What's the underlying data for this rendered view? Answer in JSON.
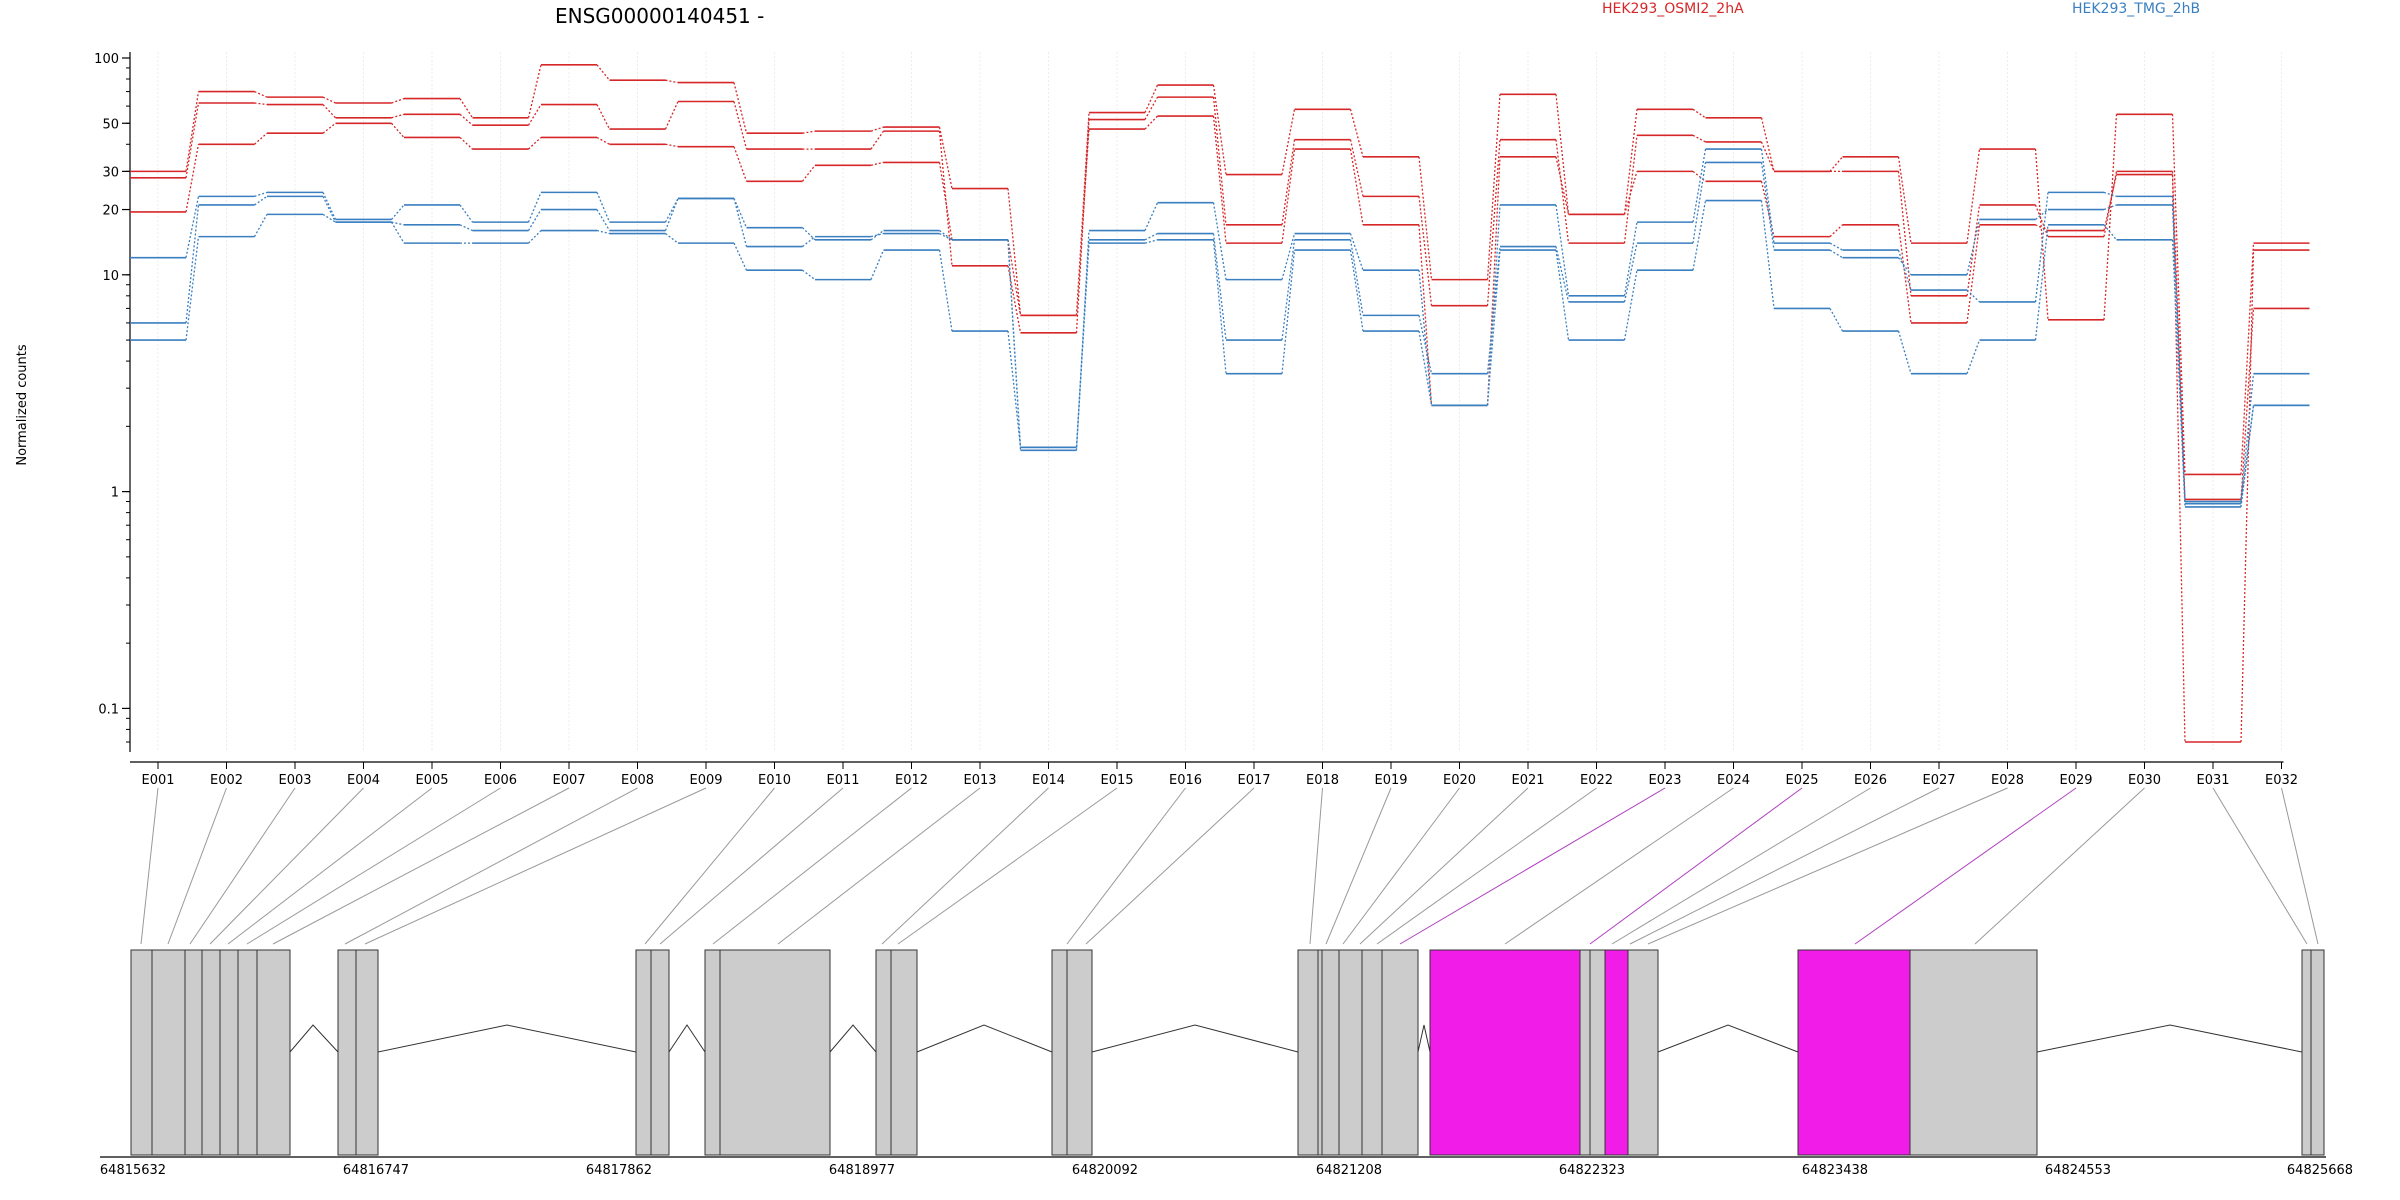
{
  "chart_data": {
    "type": "line",
    "title": "ENSG00000140451 -",
    "ylabel": "Normalized counts",
    "xlabel": "",
    "yscale": "log",
    "ylim": [
      0.07,
      100
    ],
    "yticks": [
      0.1,
      1,
      10,
      20,
      30,
      50,
      100
    ],
    "ytick_labels": [
      "0.1",
      "1",
      "10",
      "20",
      "30",
      "50",
      "100"
    ],
    "grid": "vertical light gray lines at each exon",
    "legend": [
      {
        "name": "HEK293_OSMI2_2hA",
        "color": "#d62728"
      },
      {
        "name": "HEK293_TMG_2hB",
        "color": "#3a7fc0"
      }
    ],
    "categories": [
      "E001",
      "E002",
      "E003",
      "E004",
      "E005",
      "E006",
      "E007",
      "E008",
      "E009",
      "E010",
      "E011",
      "E012",
      "E013",
      "E014",
      "E015",
      "E016",
      "E017",
      "E018",
      "E019",
      "E020",
      "E021",
      "E022",
      "E023",
      "E024",
      "E025",
      "E026",
      "E027",
      "E028",
      "E029",
      "E030",
      "E031",
      "E032"
    ],
    "series": [
      {
        "group": "HEK293_OSMI2_2hA",
        "color": "#d62728",
        "values": [
          30,
          70,
          66,
          62,
          65,
          53,
          93,
          79,
          77,
          45,
          46,
          48,
          25,
          6.5,
          56,
          75,
          29,
          58,
          35,
          9.5,
          68,
          19,
          58,
          53,
          30,
          35,
          14,
          38,
          6.2,
          55,
          1.2,
          14
        ]
      },
      {
        "group": "HEK293_OSMI2_2hA",
        "color": "#d62728",
        "values": [
          28,
          62,
          61,
          53,
          55,
          49,
          61,
          47,
          63,
          38,
          38,
          46,
          11,
          5.4,
          52,
          66,
          17,
          42,
          23,
          7.2,
          42,
          14,
          44,
          41,
          30,
          30,
          8,
          21,
          15,
          30,
          0.07,
          13
        ]
      },
      {
        "group": "HEK293_OSMI2_2hA",
        "color": "#d62728",
        "values": [
          19.5,
          40,
          45,
          50,
          43,
          38,
          43,
          40,
          39,
          27,
          32,
          33,
          14.5,
          6.5,
          47,
          54,
          14,
          38,
          17,
          2.5,
          35,
          19,
          30,
          27,
          15,
          17,
          6,
          17,
          16,
          29,
          0.92,
          7
        ]
      },
      {
        "group": "HEK293_TMG_2hB",
        "color": "#3a7fc0",
        "values": [
          12,
          23,
          24,
          18,
          21,
          17.5,
          24,
          17.5,
          22.5,
          16.5,
          14.5,
          16,
          14.5,
          1.55,
          16,
          21.5,
          9.5,
          15.5,
          10.5,
          2.5,
          21,
          8,
          17.5,
          38,
          14,
          13,
          8.5,
          7.5,
          24,
          23,
          0.88,
          2.5
        ]
      },
      {
        "group": "HEK293_TMG_2hB",
        "color": "#3a7fc0",
        "values": [
          6,
          21,
          23,
          17.5,
          17,
          16,
          20,
          16,
          22.5,
          13.5,
          15,
          15.5,
          14.5,
          1.6,
          14.5,
          15.5,
          5,
          14.5,
          6.5,
          3.5,
          13.5,
          7.5,
          14,
          33,
          13,
          12,
          10,
          18,
          20,
          21,
          0.9,
          3.5
        ]
      },
      {
        "group": "HEK293_TMG_2hB",
        "color": "#3a7fc0",
        "values": [
          5,
          15,
          19,
          17.5,
          14,
          14,
          16,
          15.5,
          14,
          10.5,
          9.5,
          13,
          5.5,
          1.6,
          14,
          14.5,
          3.5,
          13,
          5.5,
          2.5,
          13,
          5,
          10.5,
          22,
          7,
          5.5,
          3.5,
          5,
          17,
          14.5,
          0.85,
          2.5
        ]
      }
    ]
  },
  "gene_model": {
    "coordinate_labels": [
      "64815632",
      "64816747",
      "64817862",
      "64818977",
      "64820092",
      "64821208",
      "64822323",
      "64823438",
      "64824553",
      "64825668"
    ]
  }
}
